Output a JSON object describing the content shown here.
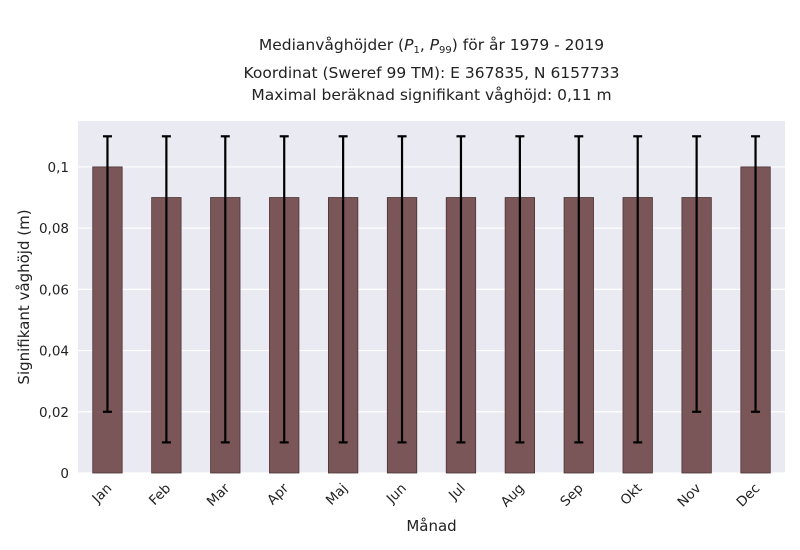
{
  "title": {
    "line1_prefix": "Medianvåghöjder (",
    "p1_letter": "P",
    "p1_sub": "1",
    "p99_letter": "P",
    "p99_sub": "99",
    "line1_suffix": ") för år 1979 - 2019",
    "line2": "Koordinat (Sweref 99 TM): E 367835, N 6157733",
    "line3": "Maximal beräknad signifikant våghöjd: 0,11 m"
  },
  "chart_data": {
    "type": "bar",
    "categories": [
      "Jan",
      "Feb",
      "Mar",
      "Apr",
      "Maj",
      "Jun",
      "Jul",
      "Aug",
      "Sep",
      "Okt",
      "Nov",
      "Dec"
    ],
    "values": [
      0.1,
      0.09,
      0.09,
      0.09,
      0.09,
      0.09,
      0.09,
      0.09,
      0.09,
      0.09,
      0.09,
      0.1
    ],
    "error_low": [
      0.02,
      0.01,
      0.01,
      0.01,
      0.01,
      0.01,
      0.01,
      0.01,
      0.01,
      0.01,
      0.02,
      0.02
    ],
    "error_high": [
      0.11,
      0.11,
      0.11,
      0.11,
      0.11,
      0.11,
      0.11,
      0.11,
      0.11,
      0.11,
      0.11,
      0.11
    ],
    "xlabel": "Månad",
    "ylabel": "Signifikant våghöjd (m)",
    "ylim": [
      0,
      0.115
    ],
    "yticks": [
      0,
      0.02,
      0.04,
      0.06,
      0.08,
      0.1
    ],
    "ytick_labels": [
      "0",
      "0,02",
      "0,04",
      "0,06",
      "0,08",
      "0,1"
    ],
    "grid": true,
    "bar_color": "#7b5658",
    "bar_edge_color": "#4a3334",
    "error_color": "#000000",
    "background_color": "#eaeaf2",
    "grid_color": "#ffffff"
  }
}
